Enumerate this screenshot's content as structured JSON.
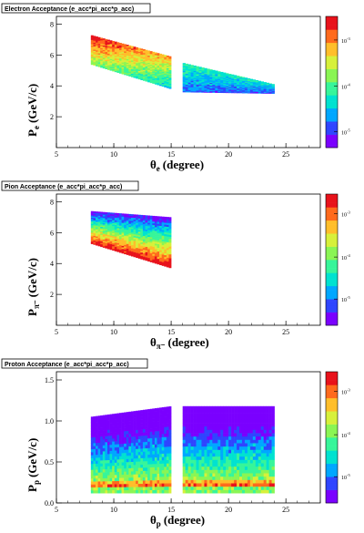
{
  "colors": {
    "palette": [
      "#7a00ff",
      "#2f45ff",
      "#00a7ff",
      "#00e2d0",
      "#37f59a",
      "#8af554",
      "#d7f03a",
      "#ffbe2a",
      "#ff6a1c",
      "#e8121b"
    ]
  },
  "chart_data": [
    {
      "type": "heatmap",
      "title": "Electron Acceptance (e_acc*pi_acc*p_acc)",
      "xlabel_main": "θ",
      "xlabel_sub": "e",
      "xlabel_unit": "(degree)",
      "ylabel_main": "P",
      "ylabel_sub": "e",
      "ylabel_unit": "(GeV/c)",
      "xlim": [
        5,
        28
      ],
      "ylim": [
        0,
        8.5
      ],
      "xticks": [
        5,
        10,
        15,
        20,
        25
      ],
      "yticks": [
        2,
        4,
        6,
        8
      ],
      "colorbar_ticks": [
        {
          "base": "10",
          "exp": "-3",
          "pos": 0.82
        },
        {
          "base": "10",
          "exp": "-4",
          "pos": 0.47
        },
        {
          "base": "10",
          "exp": "-5",
          "pos": 0.12
        }
      ],
      "bands": [
        {
          "x": [
            8,
            15
          ],
          "ylow": [
            5.4,
            3.8
          ],
          "yhigh": [
            7.3,
            5.9
          ]
        },
        {
          "x": [
            16,
            24
          ],
          "ylow": [
            3.6,
            3.5
          ],
          "yhigh": [
            5.5,
            4.1
          ]
        }
      ]
    },
    {
      "type": "heatmap",
      "title": "Pion Acceptance (e_acc*pi_acc*p_acc)",
      "xlabel_main": "θ",
      "xlabel_sub": "π⁻",
      "xlabel_unit": "(degree)",
      "ylabel_main": "P",
      "ylabel_sub": "π⁻",
      "ylabel_unit": "(GeV/c)",
      "xlim": [
        5,
        28
      ],
      "ylim": [
        0,
        8.5
      ],
      "xticks": [
        5,
        10,
        15,
        20,
        25
      ],
      "yticks": [
        2,
        4,
        6,
        8
      ],
      "colorbar_ticks": [
        {
          "base": "10",
          "exp": "-3",
          "pos": 0.85
        },
        {
          "base": "10",
          "exp": "-4",
          "pos": 0.52
        },
        {
          "base": "10",
          "exp": "-5",
          "pos": 0.2
        }
      ],
      "bands": [
        {
          "x": [
            8,
            15
          ],
          "ylow": [
            5.3,
            3.7
          ],
          "yhigh": [
            7.4,
            7.0
          ]
        }
      ]
    },
    {
      "type": "heatmap",
      "title": "Proton Acceptance (e_acc*pi_acc*p_acc)",
      "xlabel_main": "θ",
      "xlabel_sub": "p",
      "xlabel_unit": "(degree)",
      "ylabel_main": "P",
      "ylabel_sub": "p",
      "ylabel_unit": "(GeV/c)",
      "xlim": [
        5,
        28
      ],
      "ylim": [
        0,
        1.6
      ],
      "xticks": [
        5,
        10,
        15,
        20,
        25
      ],
      "yticks": [
        0.0,
        0.5,
        1.0,
        1.5
      ],
      "yticklabels": [
        "0.0",
        "0.5",
        "1.0",
        "1.5"
      ],
      "colorbar_ticks": [
        {
          "base": "10",
          "exp": "-3",
          "pos": 0.85
        },
        {
          "base": "10",
          "exp": "-4",
          "pos": 0.52
        },
        {
          "base": "10",
          "exp": "-5",
          "pos": 0.2
        }
      ],
      "bands": [
        {
          "x": [
            8,
            15
          ],
          "ylow": [
            0.12,
            0.12
          ],
          "yhigh": [
            1.05,
            1.18
          ]
        },
        {
          "x": [
            16,
            24
          ],
          "ylow": [
            0.12,
            0.12
          ],
          "yhigh": [
            1.18,
            1.18
          ]
        }
      ]
    }
  ]
}
